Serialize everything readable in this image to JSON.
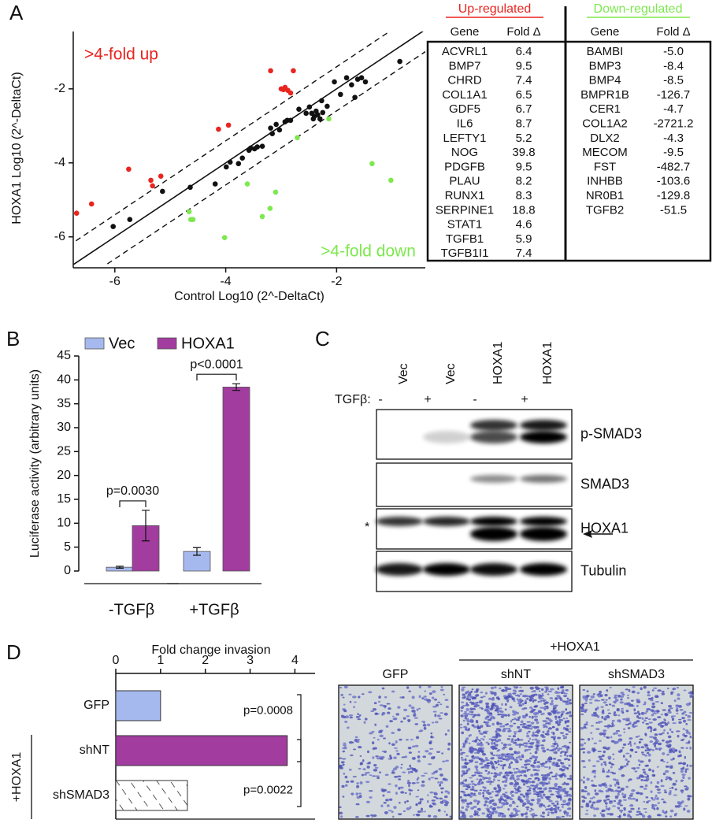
{
  "panel_labels": [
    "A",
    "B",
    "C",
    "D"
  ],
  "chart_data": [
    {
      "type": "scatter",
      "xlabel": "Control Log10 (2^-DeltaCt)",
      "ylabel": "HOXA1 Log10 (2^-DeltaCt)",
      "xlim": [
        -6.75,
        -0.4
      ],
      "ylim": [
        -6.75,
        -0.45
      ],
      "xticks": [
        -6,
        -4,
        -2
      ],
      "yticks": [
        -6,
        -4,
        -2
      ],
      "series": [
        {
          "name": ">4-fold up",
          "color": "#e8251f",
          "label_corner": "top-left",
          "x": [
            -6.69,
            -6.42,
            -5.75,
            -5.35,
            -5.32,
            -5.17,
            -4.13,
            -3.95,
            -3.19,
            -3.0,
            -2.96,
            -2.93,
            -2.88,
            -2.83,
            -2.78
          ],
          "values": [
            -5.36,
            -5.11,
            -4.17,
            -4.47,
            -4.62,
            -4.36,
            -3.09,
            -2.98,
            -1.51,
            -2.0,
            -2.02,
            -1.96,
            -2.04,
            -2.11,
            -1.51
          ]
        },
        {
          "name": ">4-fold down",
          "color": "#7ee84f",
          "label_corner": "bottom-right",
          "x": [
            -2.14,
            -2.71,
            -1.36,
            -1.02,
            -3.61,
            -3.1,
            -3.2,
            -3.34,
            -4.66,
            -4.63,
            -4.59,
            -4.02
          ],
          "values": [
            -2.81,
            -3.32,
            -4.02,
            -4.47,
            -4.57,
            -4.79,
            -5.23,
            -5.45,
            -5.32,
            -5.53,
            -5.53,
            -6.02
          ]
        },
        {
          "color": "#111111",
          "x": [
            -6.03,
            -5.73,
            -5.14,
            -4.64,
            -4.19,
            -3.99,
            -3.92,
            -3.77,
            -3.7,
            -3.58,
            -3.55,
            -3.48,
            -3.43,
            -3.34,
            -3.19,
            -3.16,
            -3.03,
            -3.09,
            -2.93,
            -2.89,
            -2.83,
            -2.68,
            -2.55,
            -2.49,
            -2.45,
            -2.42,
            -2.4,
            -2.37,
            -2.34,
            -2.3,
            -2.25,
            -2.17,
            -2.27,
            -2.04,
            -1.93,
            -1.82,
            -1.73,
            -1.67,
            -1.62,
            -1.55,
            -1.48,
            -0.86
          ],
          "values": [
            -5.72,
            -5.53,
            -4.77,
            -4.66,
            -4.57,
            -4.11,
            -3.98,
            -4.02,
            -3.87,
            -3.66,
            -3.6,
            -3.62,
            -3.57,
            -3.55,
            -3.06,
            -3.21,
            -3.11,
            -2.96,
            -2.89,
            -2.85,
            -2.85,
            -2.55,
            -2.66,
            -2.49,
            -2.66,
            -2.81,
            -2.74,
            -2.6,
            -2.7,
            -2.81,
            -2.64,
            -2.47,
            -2.32,
            -1.81,
            -2.15,
            -1.7,
            -1.89,
            -2.23,
            -1.74,
            -1.7,
            -1.81,
            -1.26
          ]
        }
      ]
    },
    {
      "type": "bar",
      "ylabel": "Luciferase activity (arbitrary units)",
      "categories": [
        "-TGFβ",
        "+TGFβ"
      ],
      "ylim": [
        0,
        45
      ],
      "yticks": [
        0,
        5,
        10,
        15,
        20,
        25,
        30,
        35,
        40,
        45
      ],
      "legend": "top",
      "series": [
        {
          "name": "Vec",
          "color": "#a6b9ee",
          "values": [
            0.8,
            4.1
          ],
          "errors": [
            0.2,
            0.8
          ]
        },
        {
          "name": "HOXA1",
          "color": "#a23c9f",
          "values": [
            9.5,
            38.5
          ],
          "errors": [
            3.2,
            0.7
          ]
        }
      ],
      "annotations": [
        {
          "text": "p=0.0030",
          "category": 0
        },
        {
          "text": "p<0.0001",
          "category": 1
        }
      ]
    },
    {
      "type": "barh",
      "xlabel": "Fold change invasion",
      "categories": [
        "GFP",
        "shNT",
        "shSMAD3"
      ],
      "values": [
        1.0,
        3.83,
        1.6
      ],
      "colors": [
        "#a6b9ee",
        "#a23c9f",
        "#ffffff"
      ],
      "hatch": [
        false,
        false,
        true
      ],
      "xlim": [
        0,
        4.45
      ],
      "xticks": [
        0,
        1,
        2,
        3,
        4
      ],
      "group": {
        "label": "+HOXA1",
        "categories": [
          1,
          2
        ]
      },
      "annotations": [
        {
          "text": "p=0.0008",
          "between": [
            0,
            1
          ]
        },
        {
          "text": "p=0.0022",
          "between": [
            1,
            2
          ]
        }
      ]
    }
  ],
  "gene_table": {
    "up_title": "Up-regulated",
    "down_title": "Down-regulated",
    "columns": [
      "Gene",
      "Fold Δ"
    ],
    "up": [
      [
        "ACVRL1",
        "6.4"
      ],
      [
        "BMP7",
        "9.5"
      ],
      [
        "CHRD",
        "7.4"
      ],
      [
        "COL1A1",
        "6.5"
      ],
      [
        "GDF5",
        "6.7"
      ],
      [
        "IL6",
        "8.7"
      ],
      [
        "LEFTY1",
        "5.2"
      ],
      [
        "NOG",
        "39.8"
      ],
      [
        "PDGFB",
        "9.5"
      ],
      [
        "PLAU",
        "8.2"
      ],
      [
        "RUNX1",
        "8.3"
      ],
      [
        "SERPINE1",
        "18.8"
      ],
      [
        "STAT1",
        "4.6"
      ],
      [
        "TGFB1",
        "5.9"
      ],
      [
        "TGFB1I1",
        "7.4"
      ]
    ],
    "down": [
      [
        "BAMBI",
        "-5.0"
      ],
      [
        "BMP3",
        "-8.4"
      ],
      [
        "BMP4",
        "-8.5"
      ],
      [
        "BMPR1B",
        "-126.7"
      ],
      [
        "CER1",
        "-4.7"
      ],
      [
        "COL1A2",
        "-2721.2"
      ],
      [
        "DLX2",
        "-4.3"
      ],
      [
        "MECOM",
        "-9.5"
      ],
      [
        "FST",
        "-482.7"
      ],
      [
        "INHBB",
        "-103.6"
      ],
      [
        "NR0B1",
        "-129.8"
      ],
      [
        "TGFB2",
        "-51.5"
      ]
    ]
  },
  "blot": {
    "lanes": [
      "Vec",
      "Vec",
      "HOXA1",
      "HOXA1"
    ],
    "treatment_label": "TGFβ:",
    "treatment": [
      "-",
      "+",
      "-",
      "+"
    ],
    "bands": [
      "p-SMAD3",
      "SMAD3",
      "HOXA1",
      "Tubulin"
    ],
    "marker": "*"
  },
  "micrographs": {
    "group_label": "+HOXA1",
    "images": [
      "GFP",
      "shNT",
      "shSMAD3"
    ]
  }
}
